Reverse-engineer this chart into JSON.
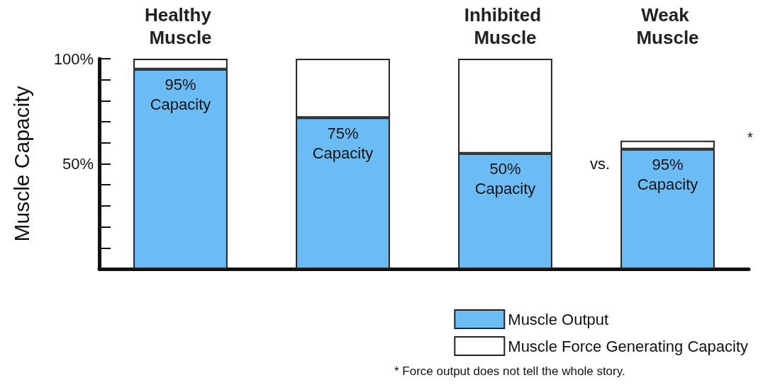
{
  "chart_data": {
    "type": "bar",
    "stacked": true,
    "ylabel": "Muscle Capacity",
    "categories": [
      "Healthy Muscle",
      null,
      "Inhibited Muscle",
      "Weak Muscle"
    ],
    "series": [
      {
        "name": "Muscle Output",
        "color": "#6bbcf5",
        "values": [
          95,
          72,
          55,
          57
        ]
      },
      {
        "name": "Muscle Force Generating Capacity",
        "color": "#ffffff",
        "values": [
          5,
          28,
          45,
          4
        ]
      }
    ],
    "ylim": [
      0,
      100
    ],
    "yticks": [
      {
        "value": 0,
        "label": null
      },
      {
        "value": 10,
        "label": null
      },
      {
        "value": 20,
        "label": null
      },
      {
        "value": 30,
        "label": null
      },
      {
        "value": 40,
        "label": null
      },
      {
        "value": 50,
        "label": "50%"
      },
      {
        "value": 60,
        "label": null
      },
      {
        "value": 70,
        "label": null
      },
      {
        "value": 80,
        "label": null
      },
      {
        "value": 90,
        "label": null
      },
      {
        "value": 100,
        "label": "100%"
      }
    ],
    "legend": "bottom right",
    "grid": false,
    "annotations": [
      "vs.",
      "*",
      "* Force output does not tell the whole story.",
      "95%\nCapacity",
      "75%\nCapacity",
      "50%\nCapacity",
      "95%\nCapacity"
    ]
  }
}
